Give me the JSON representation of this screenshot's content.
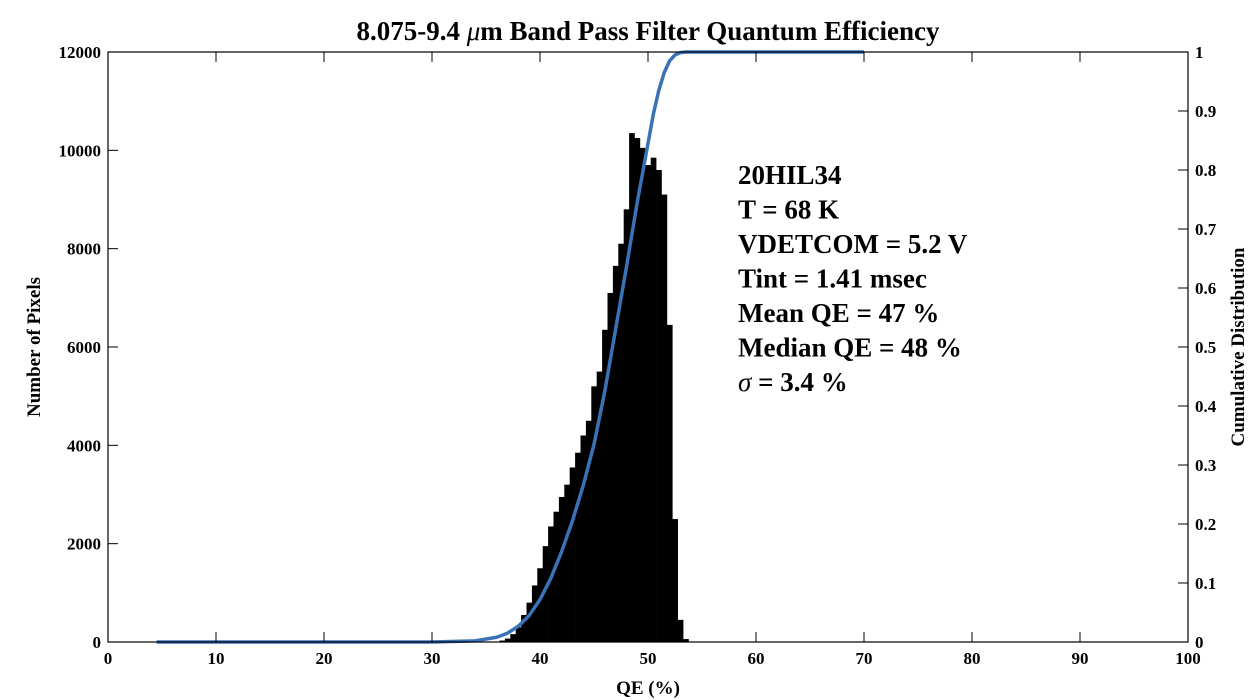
{
  "chart_data": {
    "type": "bar",
    "title_prefix": "8.075-9.4 ",
    "title_symbol": "μ",
    "title_suffix": "m Band Pass Filter Quantum Efficiency",
    "xlabel": "QE (%)",
    "ylabel": "Number of Pixels",
    "y2label": "Cumulative Distribution",
    "xlim": [
      0,
      100
    ],
    "ylim": [
      0,
      12000
    ],
    "y2lim": [
      0,
      1
    ],
    "xticks": [
      0,
      10,
      20,
      30,
      40,
      50,
      60,
      70,
      80,
      90,
      100
    ],
    "yticks": [
      0,
      2000,
      4000,
      6000,
      8000,
      10000,
      12000
    ],
    "y2ticks": [
      0,
      0.1,
      0.2,
      0.3,
      0.4,
      0.5,
      0.6,
      0.7,
      0.8,
      0.9,
      1
    ],
    "grid": false,
    "histogram": {
      "bin_width": 0.5,
      "color": "#000000",
      "bins": [
        {
          "x": 36.5,
          "count": 30
        },
        {
          "x": 37.0,
          "count": 70
        },
        {
          "x": 37.5,
          "count": 160
        },
        {
          "x": 38.0,
          "count": 300
        },
        {
          "x": 38.5,
          "count": 550
        },
        {
          "x": 39.0,
          "count": 800
        },
        {
          "x": 39.5,
          "count": 1150
        },
        {
          "x": 40.0,
          "count": 1500
        },
        {
          "x": 40.5,
          "count": 1950
        },
        {
          "x": 41.0,
          "count": 2350
        },
        {
          "x": 41.5,
          "count": 2650
        },
        {
          "x": 42.0,
          "count": 2950
        },
        {
          "x": 42.5,
          "count": 3200
        },
        {
          "x": 43.0,
          "count": 3550
        },
        {
          "x": 43.5,
          "count": 3850
        },
        {
          "x": 44.0,
          "count": 4200
        },
        {
          "x": 44.5,
          "count": 4500
        },
        {
          "x": 45.0,
          "count": 5200
        },
        {
          "x": 45.5,
          "count": 5500
        },
        {
          "x": 46.0,
          "count": 6350
        },
        {
          "x": 46.5,
          "count": 7100
        },
        {
          "x": 47.0,
          "count": 7650
        },
        {
          "x": 47.5,
          "count": 8100
        },
        {
          "x": 48.0,
          "count": 8800
        },
        {
          "x": 48.5,
          "count": 10350
        },
        {
          "x": 49.0,
          "count": 10250
        },
        {
          "x": 49.5,
          "count": 10050
        },
        {
          "x": 50.0,
          "count": 9700
        },
        {
          "x": 50.5,
          "count": 9850
        },
        {
          "x": 51.0,
          "count": 9600
        },
        {
          "x": 51.5,
          "count": 9100
        },
        {
          "x": 52.0,
          "count": 6450
        },
        {
          "x": 52.5,
          "count": 2500
        },
        {
          "x": 53.0,
          "count": 450
        },
        {
          "x": 53.5,
          "count": 60
        }
      ]
    },
    "cumulative": {
      "name": "Cumulative Distribution",
      "color": "#3a72b8",
      "points": [
        [
          4.5,
          0
        ],
        [
          30,
          0
        ],
        [
          34,
          0.002
        ],
        [
          36,
          0.008
        ],
        [
          37,
          0.015
        ],
        [
          38,
          0.027
        ],
        [
          39,
          0.045
        ],
        [
          40,
          0.072
        ],
        [
          41,
          0.108
        ],
        [
          42,
          0.153
        ],
        [
          43,
          0.205
        ],
        [
          44,
          0.265
        ],
        [
          45,
          0.335
        ],
        [
          46,
          0.425
        ],
        [
          47,
          0.53
        ],
        [
          48,
          0.635
        ],
        [
          49,
          0.745
        ],
        [
          50,
          0.845
        ],
        [
          50.5,
          0.895
        ],
        [
          51,
          0.935
        ],
        [
          51.5,
          0.965
        ],
        [
          52,
          0.985
        ],
        [
          52.5,
          0.995
        ],
        [
          53,
          0.999
        ],
        [
          53.5,
          1
        ],
        [
          70,
          1
        ]
      ]
    },
    "annotation_lines": [
      {
        "text": "20HIL34"
      },
      {
        "text": "T = 68 K"
      },
      {
        "text": "VDETCOM = 5.2 V"
      },
      {
        "text": "Tint = 1.41 msec"
      },
      {
        "text": "Mean QE = 47 %"
      },
      {
        "text": "Median QE = 48 %"
      },
      {
        "prefix": "σ",
        "text": " = 3.4 %"
      }
    ]
  }
}
